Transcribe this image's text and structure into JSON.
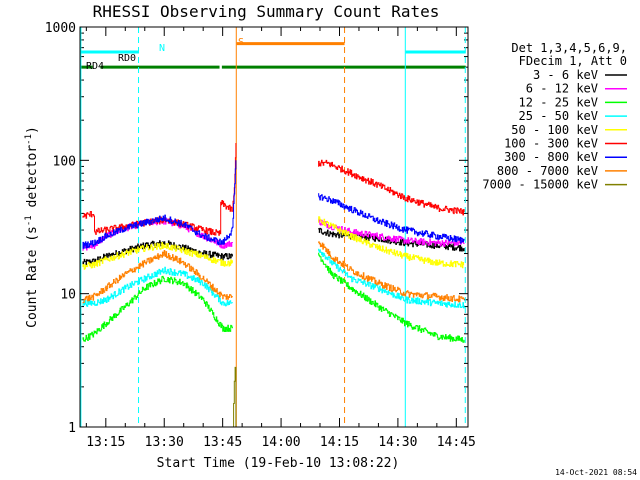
{
  "chart_data": {
    "type": "line",
    "title": "RHESSI Observing Summary Count Rates",
    "xlabel": "Start Time (19-Feb-10 13:08:22)",
    "ylabel_main": "Count Rate (s",
    "ylabel_sup1": "-1",
    "ylabel_mid": " detector",
    "ylabel_sup2": "-1",
    "ylabel_end": ")",
    "y_scale": "log",
    "ylim": [
      1,
      1000
    ],
    "xlim_minutes": [
      788.37,
      888.0
    ],
    "x_ticks": [
      {
        "label": "13:15",
        "value": 795
      },
      {
        "label": "13:30",
        "value": 810
      },
      {
        "label": "13:45",
        "value": 825
      },
      {
        "label": "14:00",
        "value": 840
      },
      {
        "label": "14:15",
        "value": 855
      },
      {
        "label": "14:30",
        "value": 870
      },
      {
        "label": "14:45",
        "value": 885
      }
    ],
    "y_ticks": [
      {
        "label": "1",
        "value": 1
      },
      {
        "label": "10",
        "value": 10
      },
      {
        "label": "100",
        "value": 100
      },
      {
        "label": "1000",
        "value": 1000
      }
    ],
    "legend_position": "right",
    "legend_header": [
      "Det 1,3,4,5,6,9,",
      "FDecim 1, Att 0"
    ],
    "timestamp": "14-Oct-2021 08:54",
    "bar_labels": {
      "rd0": "RD0",
      "rd4": "RD4",
      "n": "N",
      "s": "S"
    },
    "state_bars": [
      {
        "name": "RD0",
        "color": "#00ffff",
        "y": 650,
        "segments": [
          [
            788.4,
            803.5
          ],
          [
            872.0,
            887.4
          ]
        ]
      },
      {
        "name": "RD4",
        "color": "#008000",
        "y": 500,
        "segments": [
          [
            788.4,
            791.6
          ],
          [
            793.6,
            824.2
          ],
          [
            824.8,
            887.4
          ]
        ]
      },
      {
        "name": "S",
        "color": "#ff8000",
        "y": 750,
        "segments": [
          [
            828.6,
            856.3
          ]
        ]
      }
    ],
    "vlines": [
      {
        "x": 788.6,
        "color": "#00ffff",
        "dashed": false
      },
      {
        "x": 803.4,
        "color": "#00ffff",
        "dashed": true
      },
      {
        "x": 828.5,
        "color": "#ff8000",
        "dashed": false
      },
      {
        "x": 856.3,
        "color": "#ff8000",
        "dashed": true
      },
      {
        "x": 871.9,
        "color": "#00ffff",
        "dashed": false
      },
      {
        "x": 887.3,
        "color": "#00ffff",
        "dashed": true
      }
    ],
    "gaps": [
      [
        828.6,
        849.0
      ]
    ],
    "series": [
      {
        "name": "3 - 6 keV",
        "color": "#000000",
        "x": [
          789,
          792,
          795,
          800,
          805,
          810,
          815,
          820,
          825,
          827.5,
          849.5,
          853,
          858,
          865,
          872,
          880,
          887
        ],
        "y": [
          17,
          17.5,
          19,
          21,
          23,
          24,
          22,
          20,
          19,
          19,
          30,
          28,
          27,
          26,
          24,
          23,
          22
        ]
      },
      {
        "name": "6 - 12 keV",
        "color": "#ff00ff",
        "x": [
          789,
          792,
          795,
          800,
          805,
          810,
          815,
          820,
          825,
          827.5,
          849.5,
          853,
          858,
          865,
          872,
          880,
          887
        ],
        "y": [
          22,
          23,
          27,
          31,
          34,
          35,
          32,
          27,
          23,
          24,
          35,
          32,
          29,
          27,
          25,
          24,
          24
        ]
      },
      {
        "name": "12 - 25 keV",
        "color": "#00ff00",
        "x": [
          789,
          792,
          795,
          800,
          805,
          810,
          815,
          820,
          825,
          827.5,
          849.5,
          853,
          858,
          865,
          872,
          880,
          887
        ],
        "y": [
          4.5,
          5,
          6,
          8,
          11,
          13,
          12,
          9,
          5.5,
          5.5,
          20,
          14,
          11,
          8,
          6,
          4.8,
          4.5
        ]
      },
      {
        "name": "25 - 50 keV",
        "color": "#00ffff",
        "x": [
          789,
          792,
          795,
          800,
          805,
          810,
          815,
          820,
          825,
          827.5,
          849.5,
          853,
          858,
          865,
          872,
          880,
          887
        ],
        "y": [
          8.5,
          8.5,
          9,
          11,
          13,
          15,
          14,
          12,
          8.5,
          8.5,
          22,
          17,
          13,
          11,
          9,
          8.5,
          8.2
        ]
      },
      {
        "name": "50 - 100 keV",
        "color": "#ffff00",
        "x": [
          789,
          792,
          795,
          800,
          805,
          810,
          815,
          820,
          825,
          827.5,
          849.5,
          853,
          858,
          865,
          872,
          880,
          887
        ],
        "y": [
          16,
          16.5,
          18,
          20,
          22,
          23,
          21,
          19,
          17,
          17,
          36,
          32,
          27,
          22,
          19,
          17,
          16.5
        ]
      },
      {
        "name": "100 - 300 keV",
        "color": "#ff0000",
        "x": [
          789,
          791.9,
          792.1,
          795,
          800,
          805,
          810,
          815,
          820,
          824.3,
          824.5,
          826,
          827.5,
          828,
          828.4,
          849.5,
          852,
          858,
          865,
          872,
          880,
          887
        ],
        "y": [
          38,
          40,
          29,
          30,
          32,
          34,
          36,
          33,
          30,
          28,
          48,
          45,
          42,
          60,
          135,
          95,
          95,
          80,
          65,
          52,
          44,
          41
        ]
      },
      {
        "name": "300 - 800 keV",
        "color": "#0000ff",
        "x": [
          789,
          792,
          795,
          800,
          805,
          810,
          815,
          820,
          825,
          827.5,
          828.4,
          849.5,
          853,
          858,
          865,
          872,
          880,
          887
        ],
        "y": [
          23,
          24,
          27,
          31,
          34,
          37,
          33,
          27,
          24,
          30,
          100,
          54,
          50,
          43,
          35,
          30,
          27,
          25
        ]
      },
      {
        "name": "800 - 7000 keV",
        "color": "#ff8000",
        "x": [
          789,
          792,
          795,
          800,
          805,
          810,
          815,
          820,
          825,
          827.5,
          849.5,
          853,
          858,
          865,
          872,
          880,
          887
        ],
        "y": [
          9,
          9.5,
          11,
          14,
          17,
          20,
          17,
          13,
          9.5,
          9.5,
          25,
          19,
          15,
          12,
          10,
          9.5,
          9
        ]
      },
      {
        "name": "7000 - 15000 keV",
        "color": "#808000",
        "x": [
          827.6,
          827.8,
          828.0,
          828.2,
          828.4
        ],
        "y": [
          1,
          1.5,
          2.2,
          2.8,
          1
        ]
      }
    ]
  }
}
